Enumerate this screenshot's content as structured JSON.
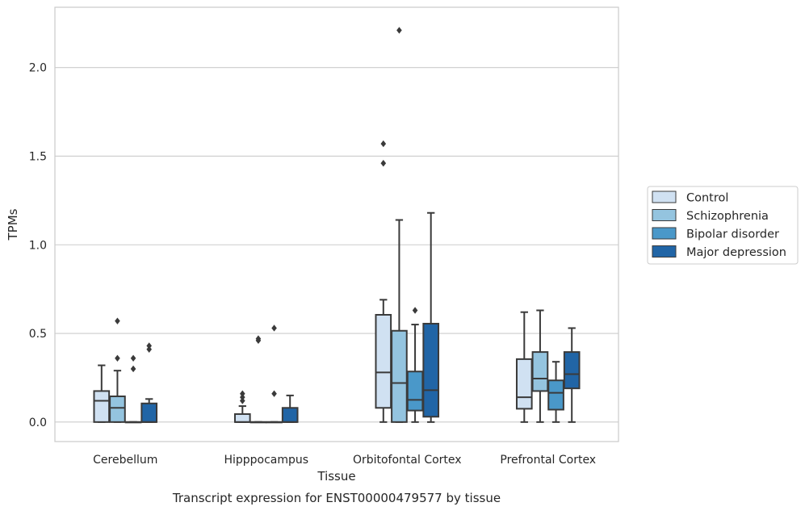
{
  "chart_data": {
    "type": "boxplot",
    "caption": "Transcript expression for ENST00000479577 by tissue",
    "xlabel": "Tissue",
    "ylabel": "TPMs",
    "ylim": [
      -0.11,
      2.34
    ],
    "yticks": [
      0.0,
      0.5,
      1.0,
      1.5,
      2.0
    ],
    "ytick_labels": [
      "0.0",
      "0.5",
      "1.0",
      "1.5",
      "2.0"
    ],
    "grid": "horizontal",
    "legend_position": "right",
    "categories": [
      "Cerebellum",
      "Hipppocampus",
      "Orbitofontal Cortex",
      "Prefrontal Cortex"
    ],
    "series": [
      {
        "name": "Control",
        "color": "#d0e1f2",
        "boxes": [
          {
            "whislo": 0.0,
            "q1": 0.0,
            "med": 0.12,
            "q3": 0.175,
            "whishi": 0.32,
            "fliers": []
          },
          {
            "whislo": 0.0,
            "q1": 0.0,
            "med": 0.0,
            "q3": 0.045,
            "whishi": 0.09,
            "fliers": [
              0.12,
              0.14,
              0.16
            ]
          },
          {
            "whislo": 0.0,
            "q1": 0.08,
            "med": 0.28,
            "q3": 0.605,
            "whishi": 0.69,
            "fliers": [
              1.46,
              1.57
            ]
          },
          {
            "whislo": 0.0,
            "q1": 0.075,
            "med": 0.14,
            "q3": 0.355,
            "whishi": 0.62,
            "fliers": []
          }
        ]
      },
      {
        "name": "Schizophrenia",
        "color": "#94c4df",
        "boxes": [
          {
            "whislo": 0.0,
            "q1": 0.0,
            "med": 0.08,
            "q3": 0.145,
            "whishi": 0.29,
            "fliers": [
              0.36,
              0.57
            ]
          },
          {
            "whislo": 0.0,
            "q1": 0.0,
            "med": 0.0,
            "q3": 0.0,
            "whishi": 0.0,
            "fliers": [
              0.46,
              0.47
            ]
          },
          {
            "whislo": 0.0,
            "q1": 0.0,
            "med": 0.22,
            "q3": 0.515,
            "whishi": 1.14,
            "fliers": [
              2.21
            ]
          },
          {
            "whislo": 0.0,
            "q1": 0.175,
            "med": 0.245,
            "q3": 0.395,
            "whishi": 0.63,
            "fliers": []
          }
        ]
      },
      {
        "name": "Bipolar disorder",
        "color": "#4a98c9",
        "boxes": [
          {
            "whislo": 0.0,
            "q1": 0.0,
            "med": 0.0,
            "q3": 0.0,
            "whishi": 0.0,
            "fliers": [
              0.3,
              0.36
            ]
          },
          {
            "whislo": 0.0,
            "q1": 0.0,
            "med": 0.0,
            "q3": 0.0,
            "whishi": 0.0,
            "fliers": [
              0.16,
              0.53
            ]
          },
          {
            "whislo": 0.0,
            "q1": 0.065,
            "med": 0.125,
            "q3": 0.285,
            "whishi": 0.55,
            "fliers": [
              0.63
            ]
          },
          {
            "whislo": 0.0,
            "q1": 0.07,
            "med": 0.165,
            "q3": 0.235,
            "whishi": 0.34,
            "fliers": []
          }
        ]
      },
      {
        "name": "Major depression",
        "color": "#2165a6",
        "boxes": [
          {
            "whislo": 0.0,
            "q1": 0.0,
            "med": 0.0,
            "q3": 0.105,
            "whishi": 0.13,
            "fliers": [
              0.41,
              0.43
            ]
          },
          {
            "whislo": 0.0,
            "q1": 0.0,
            "med": 0.0,
            "q3": 0.08,
            "whishi": 0.15,
            "fliers": []
          },
          {
            "whislo": 0.0,
            "q1": 0.03,
            "med": 0.18,
            "q3": 0.555,
            "whishi": 1.18,
            "fliers": []
          },
          {
            "whislo": 0.0,
            "q1": 0.19,
            "med": 0.27,
            "q3": 0.395,
            "whishi": 0.53,
            "fliers": []
          }
        ]
      }
    ]
  }
}
